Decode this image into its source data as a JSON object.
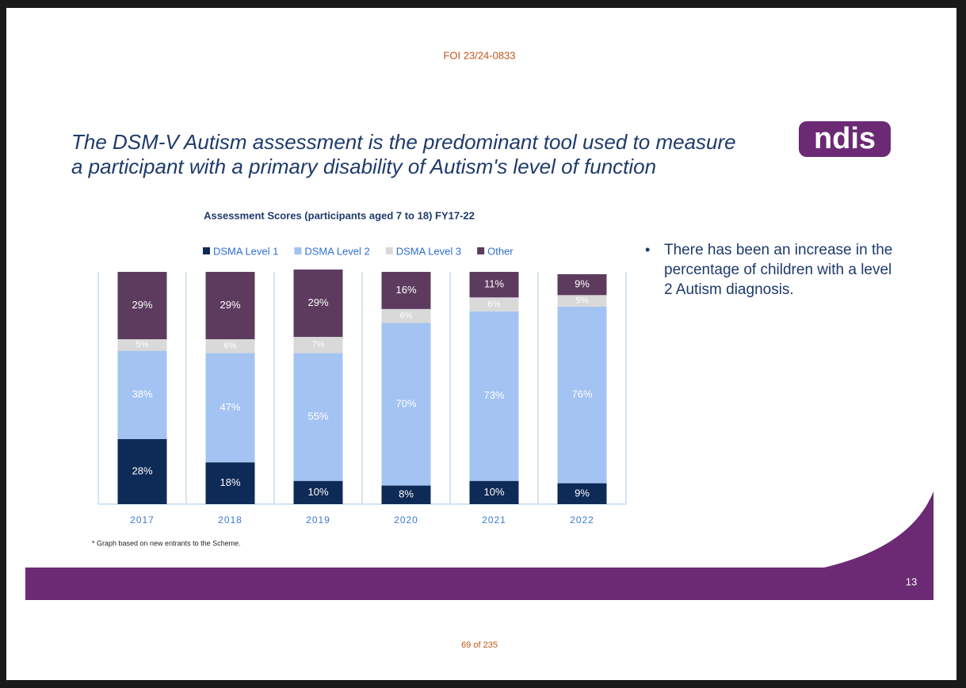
{
  "header": {
    "foi": "FOI 23/24-0833"
  },
  "heading": {
    "lines": [
      "The DSM-V Autism assessment is the predominant tool used to measure",
      "a participant with a primary disability of Autism's level of function"
    ]
  },
  "logo": "ndis",
  "chart_data": {
    "type": "stacked_bar",
    "title": "Assessment Scores (participants aged 7 to 18)  FY17-22",
    "categories": [
      "2017",
      "2018",
      "2019",
      "2020",
      "2021",
      "2022"
    ],
    "series": [
      {
        "name": "DSMA Level 1",
        "color": "#0e2a57",
        "values": [
          28,
          18,
          10,
          8,
          10,
          9
        ],
        "value_labels": [
          "28%",
          "18%",
          "10%",
          "8%",
          "10%",
          "9%"
        ]
      },
      {
        "name": "DSMA Level 2",
        "color": "#a3c3f2",
        "values": [
          38,
          47,
          55,
          70,
          73,
          76
        ],
        "value_labels": [
          "38%",
          "47%",
          "55%",
          "70%",
          "73%",
          "76%"
        ]
      },
      {
        "name": "DSMA Level 3",
        "color": "#d9d9d9",
        "values": [
          5,
          6,
          7,
          6,
          6,
          5
        ],
        "value_labels": [
          "5%",
          "6%",
          "7%",
          "6%",
          "6%",
          "5%"
        ]
      },
      {
        "name": "Other",
        "color": "#5d3b5f",
        "values": [
          29,
          29,
          29,
          16,
          11,
          9
        ],
        "value_labels": [
          "29%",
          "29%",
          "29%",
          "16%",
          "11%",
          "9%"
        ]
      }
    ],
    "ylim": [
      0,
      100
    ]
  },
  "bullet": "There has been an increase in the percentage of children with a level 2 Autism diagnosis.",
  "footnote": "* Graph based on new entrants to the Scheme.",
  "slide_number": "13",
  "footer": "69 of 235"
}
